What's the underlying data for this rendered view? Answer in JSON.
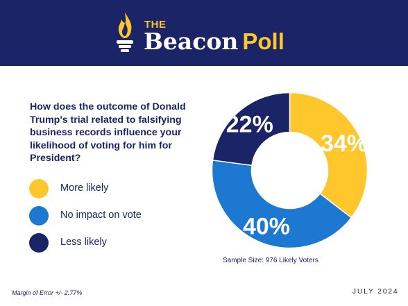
{
  "header": {
    "brand_the": "THE",
    "brand_beacon": "Beacon",
    "brand_poll": "Poll",
    "logo_icon": "torch-icon"
  },
  "question": "How does the outcome of Donald Trump's trial related to falsifying business records influence your likelihood of voting for him for President?",
  "colors": {
    "navy": "#1a2467",
    "gold": "#ffc72c",
    "blue": "#1c78d0"
  },
  "chart_data": {
    "type": "pie",
    "donut": true,
    "categories": [
      "More likely",
      "No impact on vote",
      "Less likely"
    ],
    "values": [
      34,
      40,
      22
    ],
    "labels": [
      "34%",
      "40%",
      "22%"
    ],
    "colors": [
      "#ffc72c",
      "#1c78d0",
      "#1a2467"
    ],
    "legend_position": "left"
  },
  "footer": {
    "sample": "Sample Size: 976 Likely Voters",
    "margin_of_error": "Margin of Error +/- 2.77%",
    "date": "JULY 2024"
  }
}
